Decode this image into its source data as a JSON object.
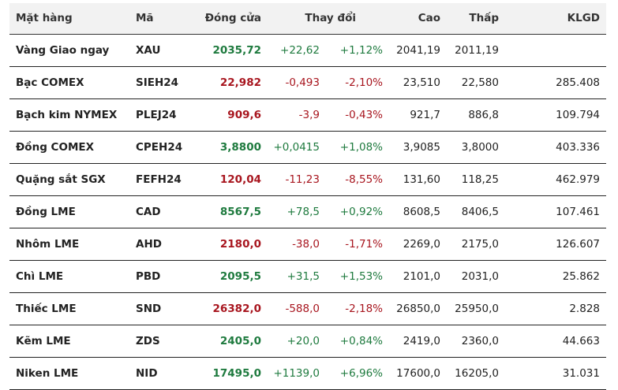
{
  "headers": {
    "name": "Mặt hàng",
    "code": "Mã",
    "close": "Đóng cửa",
    "change": "Thay đổi",
    "high": "Cao",
    "low": "Thấp",
    "volume": "KLGD"
  },
  "colors": {
    "up": "#1e7a3e",
    "down": "#a8161f"
  },
  "rows": [
    {
      "name": "Vàng Giao ngay",
      "code": "XAU",
      "close": "2035,72",
      "change": "+22,62",
      "pct": "+1,12%",
      "high": "2041,19",
      "low": "2011,19",
      "volume": "",
      "dir": "up"
    },
    {
      "name": "Bạc COMEX",
      "code": "SIEH24",
      "close": "22,982",
      "change": "-0,493",
      "pct": "-2,10%",
      "high": "23,510",
      "low": "22,580",
      "volume": "285.408",
      "dir": "dn"
    },
    {
      "name": "Bạch kim NYMEX",
      "code": "PLEJ24",
      "close": "909,6",
      "change": "-3,9",
      "pct": "-0,43%",
      "high": "921,7",
      "low": "886,8",
      "volume": "109.794",
      "dir": "dn"
    },
    {
      "name": "Đồng COMEX",
      "code": "CPEH24",
      "close": "3,8800",
      "change": "+0,0415",
      "pct": "+1,08%",
      "high": "3,9085",
      "low": "3,8000",
      "volume": "403.336",
      "dir": "up"
    },
    {
      "name": "Quặng sắt SGX",
      "code": "FEFH24",
      "close": "120,04",
      "change": "-11,23",
      "pct": "-8,55%",
      "high": "131,60",
      "low": "118,25",
      "volume": "462.979",
      "dir": "dn"
    },
    {
      "name": "Đồng LME",
      "code": "CAD",
      "close": "8567,5",
      "change": "+78,5",
      "pct": "+0,92%",
      "high": "8608,5",
      "low": "8406,5",
      "volume": "107.461",
      "dir": "up"
    },
    {
      "name": "Nhôm LME",
      "code": "AHD",
      "close": "2180,0",
      "change": "-38,0",
      "pct": "-1,71%",
      "high": "2269,0",
      "low": "2175,0",
      "volume": "126.607",
      "dir": "dn"
    },
    {
      "name": "Chì LME",
      "code": "PBD",
      "close": "2095,5",
      "change": "+31,5",
      "pct": "+1,53%",
      "high": "2101,0",
      "low": "2031,0",
      "volume": "25.862",
      "dir": "up"
    },
    {
      "name": "Thiếc LME",
      "code": "SND",
      "close": "26382,0",
      "change": "-588,0",
      "pct": "-2,18%",
      "high": "26850,0",
      "low": "25950,0",
      "volume": "2.828",
      "dir": "dn"
    },
    {
      "name": "Kẽm LME",
      "code": "ZDS",
      "close": "2405,0",
      "change": "+20,0",
      "pct": "+0,84%",
      "high": "2419,0",
      "low": "2360,0",
      "volume": "44.663",
      "dir": "up"
    },
    {
      "name": "Niken LME",
      "code": "NID",
      "close": "17495,0",
      "change": "+1139,0",
      "pct": "+6,96%",
      "high": "17600,0",
      "low": "16205,0",
      "volume": "31.031",
      "dir": "up"
    }
  ]
}
